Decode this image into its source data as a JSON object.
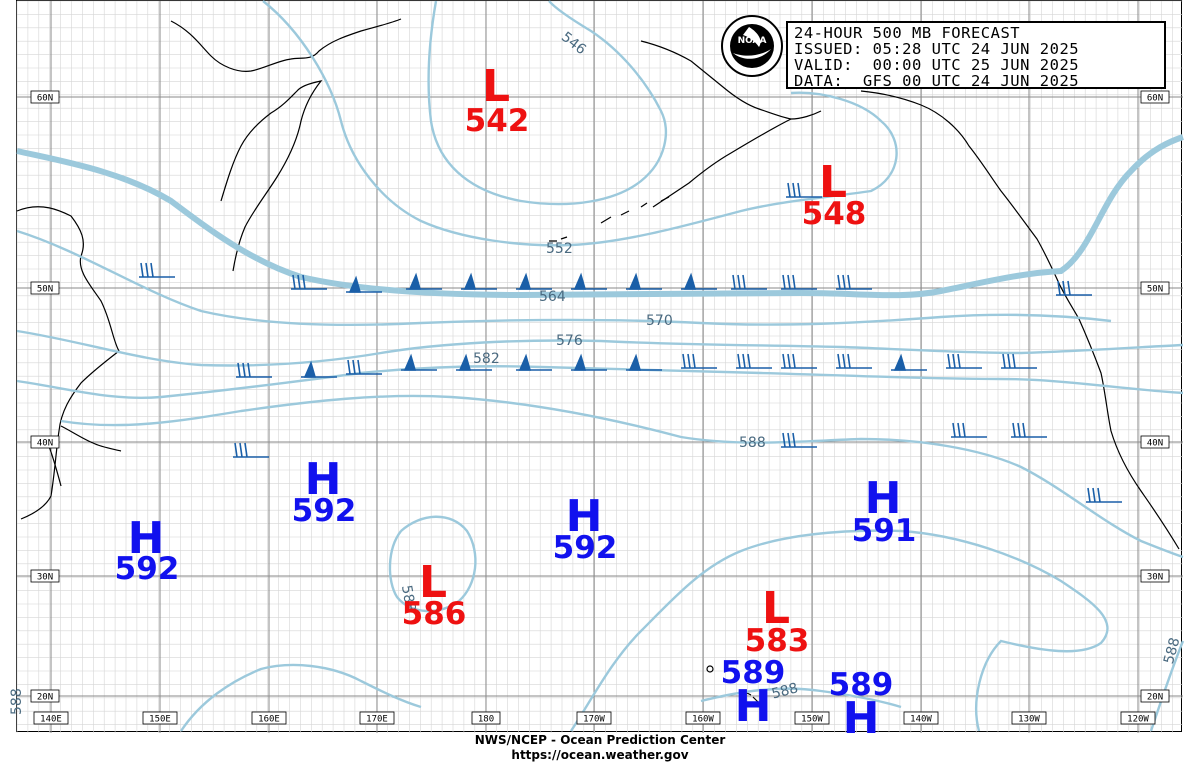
{
  "title_box": {
    "line1": "24-HOUR 500 MB FORECAST",
    "line2": "ISSUED: 05:28 UTC 24 JUN 2025",
    "line3": "VALID:  00:00 UTC 25 JUN 2025",
    "line4": "DATA:  GFS 00 UTC 24 JUN 2025"
  },
  "logo": {
    "text": "NOAA"
  },
  "footer": {
    "line1": "NWS/NCEP - Ocean Prediction Center",
    "line2": "https://ocean.weather.gov"
  },
  "longitude_labels": [
    "140E",
    "150E",
    "160E",
    "170E",
    "180",
    "170W",
    "160W",
    "150W",
    "140W",
    "130W",
    "120W"
  ],
  "latitude_labels": [
    "60N",
    "50N",
    "40N",
    "30N",
    "20N"
  ],
  "contour_labels": [
    "546",
    "552",
    "564",
    "570",
    "576",
    "582",
    "588",
    "588",
    "588",
    "588",
    "588"
  ],
  "systems": [
    {
      "type": "L",
      "value": "542",
      "color": "#ee1111"
    },
    {
      "type": "L",
      "value": "548",
      "color": "#ee1111"
    },
    {
      "type": "L",
      "value": "586",
      "color": "#ee1111"
    },
    {
      "type": "L",
      "value": "583",
      "color": "#ee1111"
    },
    {
      "type": "H",
      "value": "592",
      "color": "#1111ee"
    },
    {
      "type": "H",
      "value": "592",
      "color": "#1111ee"
    },
    {
      "type": "H",
      "value": "592",
      "color": "#1111ee"
    },
    {
      "type": "H",
      "value": "591",
      "color": "#1111ee"
    },
    {
      "type": "H",
      "value": "589",
      "color": "#1111ee"
    },
    {
      "type": "H",
      "value": "589",
      "color": "#1111ee"
    }
  ],
  "colors": {
    "contour": "#9cc9dc",
    "contour_label": "#4a6a80",
    "coast": "#000000",
    "grid_major": "#8a8a8a",
    "grid_minor": "#cfcfcf",
    "wind_barb": "#1a5fa8",
    "low": "#ee1111",
    "high": "#1111ee"
  }
}
